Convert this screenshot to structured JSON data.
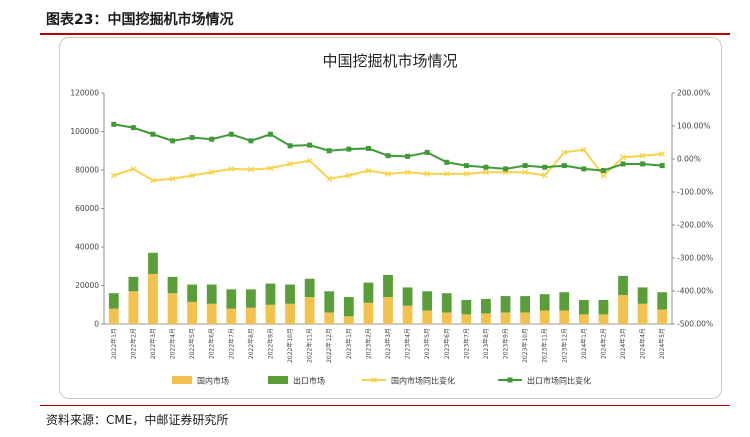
{
  "header": {
    "figure_title": "图表23：中国挖掘机市场情况"
  },
  "footer": {
    "source": "资料来源：CME，中邮证券研究所"
  },
  "colors": {
    "domestic": "#f2c14e",
    "export": "#5a9e3a",
    "domestic_yoy": "#f7d34a",
    "export_yoy": "#3f9a36"
  },
  "chart_data": {
    "type": "bar",
    "title": "中国挖掘机市场情况",
    "categories": [
      "2022年1月",
      "2022年2月",
      "2022年3月",
      "2022年4月",
      "2022年5月",
      "2022年6月",
      "2022年7月",
      "2022年8月",
      "2022年9月",
      "2022年10月",
      "2022年11月",
      "2022年12月",
      "2023年1月",
      "2023年2月",
      "2023年3月",
      "2023年4月",
      "2023年5月",
      "2023年6月",
      "2023年7月",
      "2023年8月",
      "2023年9月",
      "2023年10月",
      "2023年11月",
      "2023年12月",
      "2024年1月",
      "2024年2月",
      "2024年3月",
      "2024年4月",
      "2024年5月"
    ],
    "y_left": {
      "ticks": [
        "0",
        "20000",
        "40000",
        "60000",
        "80000",
        "100000",
        "120000"
      ],
      "lim": [
        0,
        120000
      ]
    },
    "y_right": {
      "ticks": [
        "-500.00%",
        "-400.00%",
        "-300.00%",
        "-200.00%",
        "-100.00%",
        "0.00%",
        "100.00%",
        "200.00%"
      ],
      "lim": [
        -500,
        200
      ]
    },
    "stacked": true,
    "series": [
      {
        "name": "国内市场",
        "kind": "bar",
        "axis": "left",
        "values": [
          8000,
          17000,
          26000,
          16000,
          11500,
          10500,
          8000,
          8500,
          10000,
          10500,
          14000,
          6000,
          4000,
          11000,
          14000,
          9500,
          7000,
          6000,
          5000,
          5500,
          6000,
          6000,
          7000,
          7000,
          5000,
          5000,
          15000,
          10500,
          7500
        ]
      },
      {
        "name": "出口市场",
        "kind": "bar",
        "axis": "left",
        "values": [
          8000,
          7500,
          11000,
          8500,
          9000,
          10000,
          10000,
          9500,
          11000,
          10000,
          9500,
          11000,
          10000,
          10500,
          11500,
          9500,
          10000,
          10000,
          7500,
          7500,
          8500,
          8500,
          8500,
          9500,
          7500,
          7500,
          10000,
          8500,
          9000
        ]
      },
      {
        "name": "国内市场同比变化",
        "kind": "line",
        "axis": "right",
        "values": [
          -50,
          -30,
          -65,
          -60,
          -50,
          -40,
          -30,
          -32,
          -28,
          -15,
          -5,
          -60,
          -50,
          -35,
          -45,
          -40,
          -45,
          -45,
          -45,
          -40,
          -40,
          -40,
          -50,
          20,
          28,
          -50,
          5,
          10,
          15
        ]
      },
      {
        "name": "出口市场同比变化",
        "kind": "line",
        "axis": "right",
        "values": [
          105,
          95,
          75,
          55,
          65,
          60,
          75,
          55,
          75,
          40,
          42,
          25,
          30,
          32,
          10,
          8,
          20,
          -10,
          -20,
          -25,
          -30,
          -20,
          -25,
          -20,
          -30,
          -35,
          -15,
          -15,
          -20
        ]
      }
    ],
    "legend_position": "bottom",
    "grid": false
  }
}
